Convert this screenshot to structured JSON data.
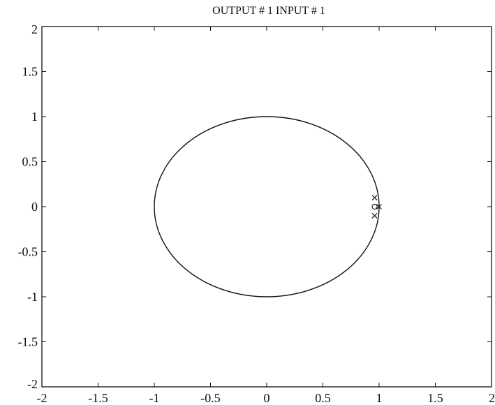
{
  "chart_data": {
    "type": "scatter",
    "title": "OUTPUT # 1  INPUT # 1",
    "xlabel": "",
    "ylabel": "",
    "xlim": [
      -2,
      2
    ],
    "ylim": [
      -2,
      2
    ],
    "x_ticks": [
      "-2",
      "-1.5",
      "-1",
      "-0.5",
      "0",
      "0.5",
      "1",
      "1.5",
      "2"
    ],
    "y_ticks": [
      "2",
      "1.5",
      "1",
      "0.5",
      "0",
      "-0.5",
      "-1",
      "-1.5",
      "-2"
    ],
    "grid": false,
    "reference_curve": {
      "shape": "circle",
      "center": [
        0,
        0
      ],
      "radius": 1
    },
    "series": [
      {
        "marker": "x",
        "points": [
          {
            "x": 0.96,
            "y": 0.1
          },
          {
            "x": 0.96,
            "y": -0.1
          },
          {
            "x": 1.0,
            "y": 0.0
          }
        ]
      },
      {
        "marker": "o",
        "points": [
          {
            "x": 0.96,
            "y": 0.0
          }
        ]
      }
    ]
  }
}
